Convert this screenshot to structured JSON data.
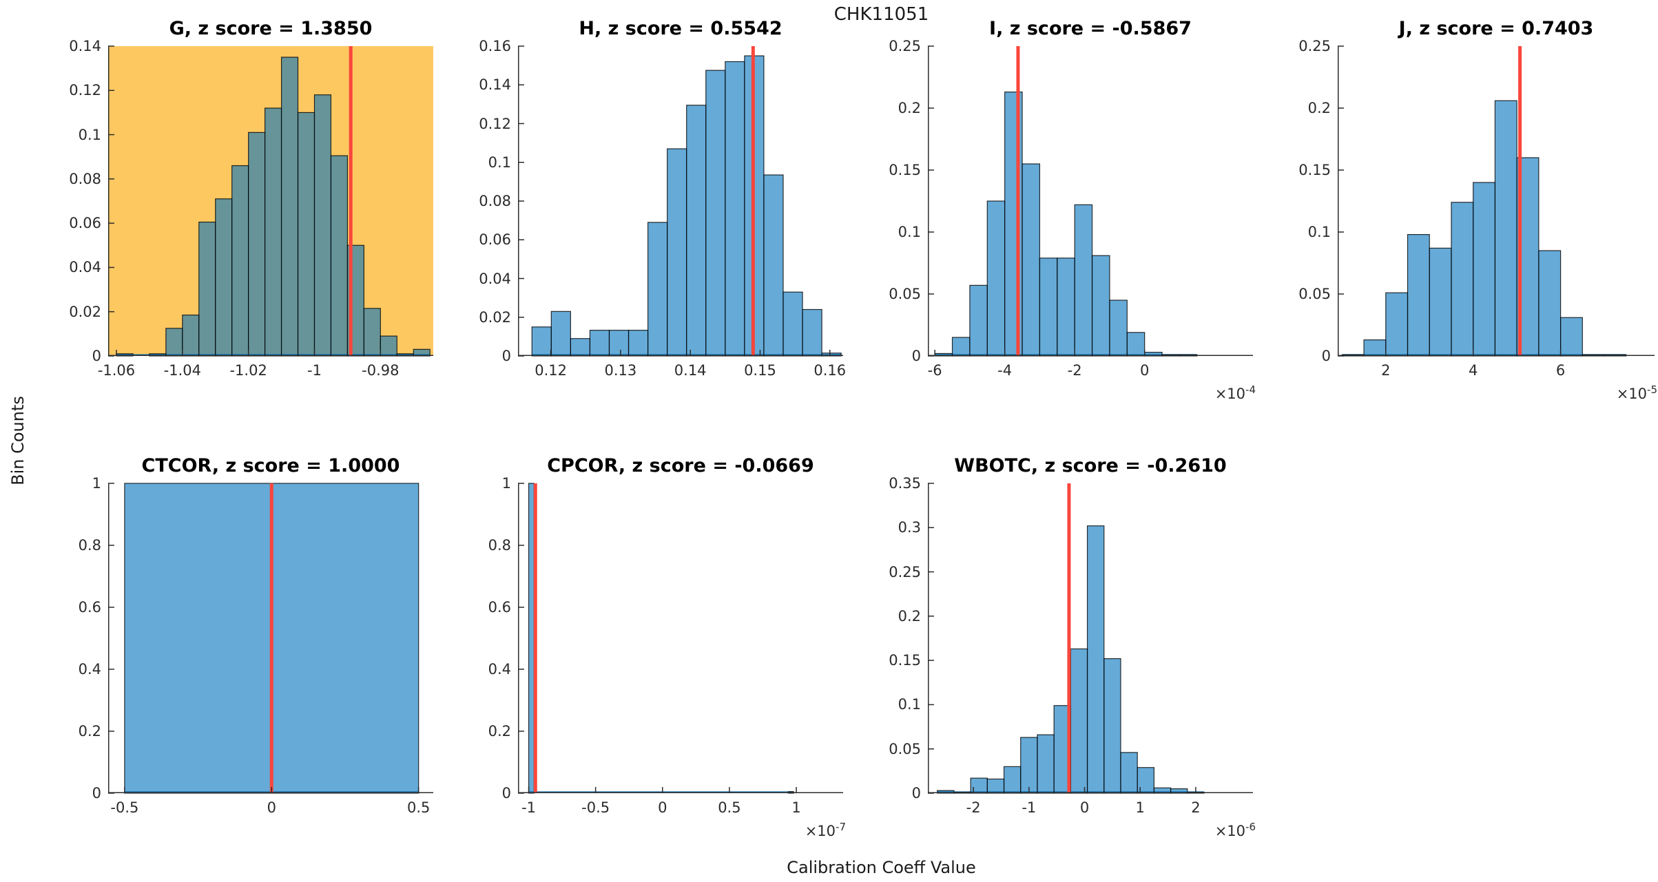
{
  "figure": {
    "suptitle": "CHK11051",
    "ylabel": "Bin Counts",
    "xlabel": "Calibration Coeff Value",
    "colors": {
      "bar_fill": "#0072BD",
      "bar_fill_opacity": 0.6,
      "bar_edge": "#000000",
      "baseline": "#2077B4",
      "red_line": "#F9463C",
      "axis": "#2b2b2b",
      "highlight_bg": "#FEC861",
      "plot_bg": "#FFFFFF"
    }
  },
  "chart_data": [
    {
      "type": "bar",
      "name": "G",
      "title": "G, z score = 1.3850",
      "z_score": 1.385,
      "highlight": true,
      "xlim": [
        -1.0625,
        -0.964
      ],
      "ylim": [
        0,
        0.14
      ],
      "xtick_values": [
        -1.06,
        -1.04,
        -1.02,
        -1.0,
        -0.98
      ],
      "xtick_labels": [
        "-1.06",
        "-1.04",
        "-1.02",
        "-1",
        "-0.98"
      ],
      "ytick_values": [
        0,
        0.02,
        0.04,
        0.06,
        0.08,
        0.1,
        0.12,
        0.14
      ],
      "ytick_labels": [
        "0",
        "0.02",
        "0.04",
        "0.06",
        "0.08",
        "0.1",
        "0.12",
        "0.14"
      ],
      "bin_start": -1.06,
      "bin_width": 0.005,
      "bar_heights": [
        0.001,
        0,
        0.001,
        0.0125,
        0.0185,
        0.0605,
        0.071,
        0.086,
        0.101,
        0.112,
        0.135,
        0.11,
        0.118,
        0.0905,
        0.05,
        0.0215,
        0.009,
        0.001,
        0.003
      ],
      "red_line_x": -0.989,
      "exp_base": null,
      "exp_power": null
    },
    {
      "type": "bar",
      "name": "H",
      "title": "H, z score = 0.5542",
      "z_score": 0.5542,
      "highlight": false,
      "xlim": [
        0.1153,
        0.1619
      ],
      "ylim": [
        0,
        0.16
      ],
      "xtick_values": [
        0.12,
        0.13,
        0.14,
        0.15,
        0.16
      ],
      "xtick_labels": [
        "0.12",
        "0.13",
        "0.14",
        "0.15",
        "0.16"
      ],
      "ytick_values": [
        0,
        0.02,
        0.04,
        0.06,
        0.08,
        0.1,
        0.12,
        0.14,
        0.16
      ],
      "ytick_labels": [
        "0",
        "0.02",
        "0.04",
        "0.06",
        "0.08",
        "0.1",
        "0.12",
        "0.14",
        "0.16"
      ],
      "bin_start": 0.1173,
      "bin_width": 0.00277,
      "bar_heights": [
        0.015,
        0.023,
        0.009,
        0.0133,
        0.0133,
        0.0133,
        0.069,
        0.107,
        0.1295,
        0.1475,
        0.152,
        0.155,
        0.0935,
        0.033,
        0.024,
        0.0015
      ],
      "red_line_x": 0.149,
      "exp_base": null,
      "exp_power": null
    },
    {
      "type": "bar",
      "name": "I",
      "title": "I, z score = -0.5867",
      "z_score": -0.5867,
      "highlight": false,
      "xlim": [
        -0.00062,
        0.00031
      ],
      "ylim": [
        0,
        0.25
      ],
      "xtick_values": [
        -0.0006,
        -0.0004,
        -0.0002,
        0
      ],
      "xtick_labels": [
        "-6",
        "-4",
        "-2",
        "0"
      ],
      "ytick_values": [
        0,
        0.05,
        0.1,
        0.15,
        0.2,
        0.25
      ],
      "ytick_labels": [
        "0",
        "0.05",
        "0.1",
        "0.15",
        "0.2",
        "0.25"
      ],
      "bin_start": -0.0006,
      "bin_width": 5e-05,
      "bar_heights": [
        0.002,
        0.015,
        0.057,
        0.125,
        0.213,
        0.155,
        0.079,
        0.079,
        0.122,
        0.081,
        0.045,
        0.019,
        0.003,
        0.001,
        0.001
      ],
      "red_line_x": -0.000362,
      "exp_base": "×10",
      "exp_power": "-4"
    },
    {
      "type": "bar",
      "name": "J",
      "title": "J, z score = 0.7403",
      "z_score": 0.7403,
      "highlight": false,
      "xlim": [
        9e-06,
        8.15e-05
      ],
      "ylim": [
        0,
        0.25
      ],
      "xtick_values": [
        2e-05,
        4e-05,
        6e-05
      ],
      "xtick_labels": [
        "2",
        "4",
        "6"
      ],
      "ytick_values": [
        0,
        0.05,
        0.1,
        0.15,
        0.2,
        0.25
      ],
      "ytick_labels": [
        "0",
        "0.05",
        "0.1",
        "0.15",
        "0.2",
        "0.25"
      ],
      "bin_start": 1e-05,
      "bin_width": 5e-06,
      "bar_heights": [
        0.001,
        0.013,
        0.051,
        0.098,
        0.087,
        0.124,
        0.14,
        0.206,
        0.16,
        0.085,
        0.031,
        0.001,
        0.001
      ],
      "red_line_x": 5.07e-05,
      "exp_base": "×10",
      "exp_power": "-5"
    },
    {
      "type": "bar",
      "name": "CTCOR",
      "title": "CTCOR, z score = 1.0000",
      "z_score": 1.0,
      "highlight": false,
      "xlim": [
        -0.556,
        0.55
      ],
      "ylim": [
        0,
        1
      ],
      "xtick_values": [
        -0.5,
        0,
        0.5
      ],
      "xtick_labels": [
        "-0.5",
        "0",
        "0.5"
      ],
      "ytick_values": [
        0,
        0.2,
        0.4,
        0.6,
        0.8,
        1
      ],
      "ytick_labels": [
        "0",
        "0.2",
        "0.4",
        "0.6",
        "0.8",
        "1"
      ],
      "bin_start": -0.5,
      "bin_width": 1.0,
      "bar_heights": [
        1.0
      ],
      "red_line_x": 0,
      "exp_base": null,
      "exp_power": null
    },
    {
      "type": "bar",
      "name": "CPCOR",
      "title": "CPCOR, z score = -0.0669",
      "z_score": -0.0669,
      "highlight": false,
      "xlim": [
        -1.08e-07,
        1.35e-07
      ],
      "ylim": [
        0,
        1
      ],
      "xtick_values": [
        -1e-07,
        -5e-08,
        0,
        5e-08,
        1e-07
      ],
      "xtick_labels": [
        "-1",
        "-0.5",
        "0",
        "0.5",
        "1"
      ],
      "ytick_values": [
        0,
        0.2,
        0.4,
        0.6,
        0.8,
        1
      ],
      "ytick_labels": [
        "0",
        "0.2",
        "0.4",
        "0.6",
        "0.8",
        "1"
      ],
      "bars": [
        {
          "x": -1e-07,
          "w": 4e-09,
          "h": 1.0
        },
        {
          "x": 9.4e-08,
          "w": 4e-09,
          "h": 0.005
        }
      ],
      "red_line_x": -9.5e-08,
      "exp_base": "×10",
      "exp_power": "-7"
    },
    {
      "type": "bar",
      "name": "WBOTC",
      "title": "WBOTC, z score = -0.2610",
      "z_score": -0.261,
      "highlight": false,
      "xlim": [
        -2.82e-06,
        3.03e-06
      ],
      "ylim": [
        0,
        0.35
      ],
      "xtick_values": [
        -2e-06,
        -1e-06,
        0,
        1e-06,
        2e-06
      ],
      "xtick_labels": [
        "-2",
        "-1",
        "0",
        "1",
        "2"
      ],
      "ytick_values": [
        0,
        0.05,
        0.1,
        0.15,
        0.2,
        0.25,
        0.3,
        0.35
      ],
      "ytick_labels": [
        "0",
        "0.05",
        "0.1",
        "0.15",
        "0.2",
        "0.25",
        "0.3",
        "0.35"
      ],
      "bin_start": -2.65e-06,
      "bin_width": 3e-07,
      "bar_heights": [
        0.003,
        0.001,
        0.017,
        0.016,
        0.03,
        0.063,
        0.066,
        0.099,
        0.163,
        0.302,
        0.152,
        0.046,
        0.029,
        0.006,
        0.005,
        0.001
      ],
      "red_line_x": -2.8e-07,
      "exp_base": "×10",
      "exp_power": "-6"
    }
  ]
}
